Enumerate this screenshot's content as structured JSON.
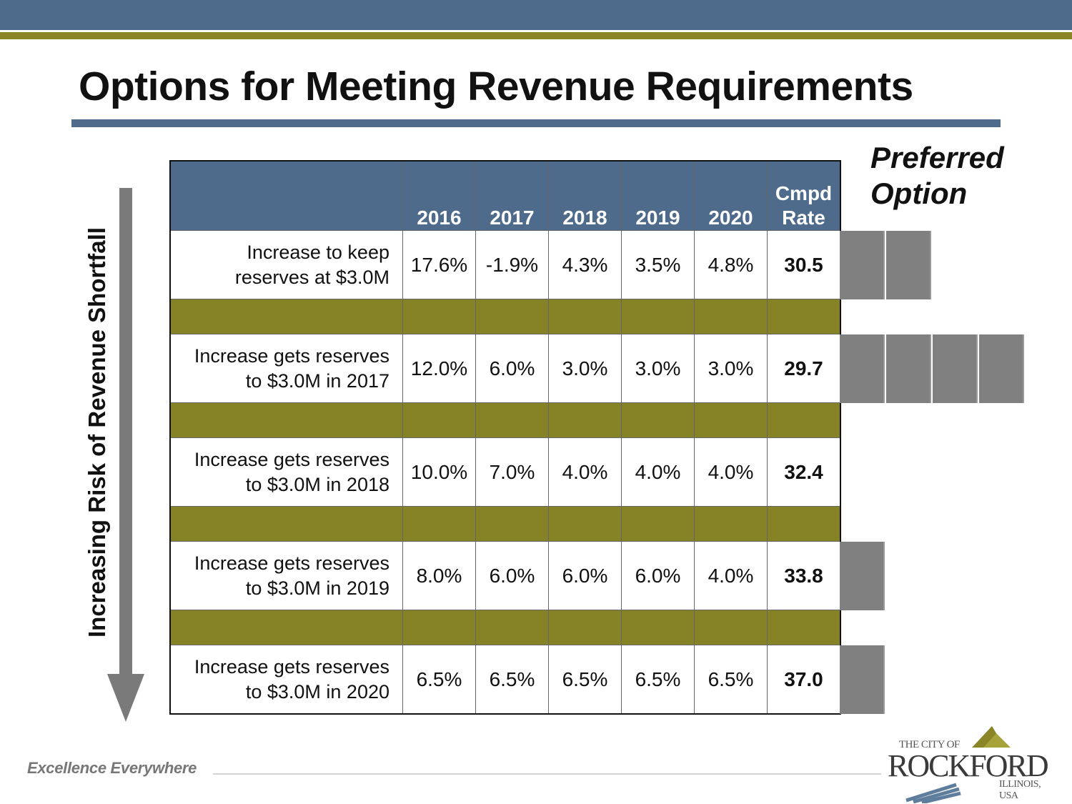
{
  "title": "Options for Meeting Revenue Requirements",
  "side_label": "Increasing Risk of Revenue Shortfall",
  "preferred": {
    "line1": "Preferred",
    "line2": "Option"
  },
  "table": {
    "headers": [
      "",
      "2016",
      "2017",
      "2018",
      "2019",
      "2020"
    ],
    "rate_header": {
      "line1": "Cmpd",
      "line2": "Rate"
    },
    "rows": [
      {
        "label1": "Increase to keep",
        "label2": "reserves at $3.0M",
        "values": [
          "17.6%",
          "-1.9%",
          "4.3%",
          "3.5%",
          "4.8%"
        ],
        "rate": "30.5",
        "preference": 2
      },
      {
        "label1": "Increase gets reserves",
        "label2": "to $3.0M in 2017",
        "values": [
          "12.0%",
          "6.0%",
          "3.0%",
          "3.0%",
          "3.0%"
        ],
        "rate": "29.7",
        "preference": 4
      },
      {
        "label1": "Increase gets reserves",
        "label2": "to $3.0M in 2018",
        "values": [
          "10.0%",
          "7.0%",
          "4.0%",
          "4.0%",
          "4.0%"
        ],
        "rate": "32.4",
        "preference": 0
      },
      {
        "label1": "Increase gets reserves",
        "label2": "to $3.0M in 2019",
        "values": [
          "8.0%",
          "6.0%",
          "6.0%",
          "6.0%",
          "4.0%"
        ],
        "rate": "33.8",
        "preference": 1
      },
      {
        "label1": "Increase gets reserves",
        "label2": "to $3.0M in 2020",
        "values": [
          "6.5%",
          "6.5%",
          "6.5%",
          "6.5%",
          "6.5%"
        ],
        "rate": "37.0",
        "preference": 1
      }
    ]
  },
  "footer": {
    "tagline": "Excellence Everywhere"
  },
  "logo": {
    "pre": "THE CITY OF",
    "name": "ROCKFORD",
    "post": "ILLINOIS, USA"
  },
  "colors": {
    "navy": "#4e6b8b",
    "olive": "#868226",
    "bar_gray": "#808080"
  }
}
